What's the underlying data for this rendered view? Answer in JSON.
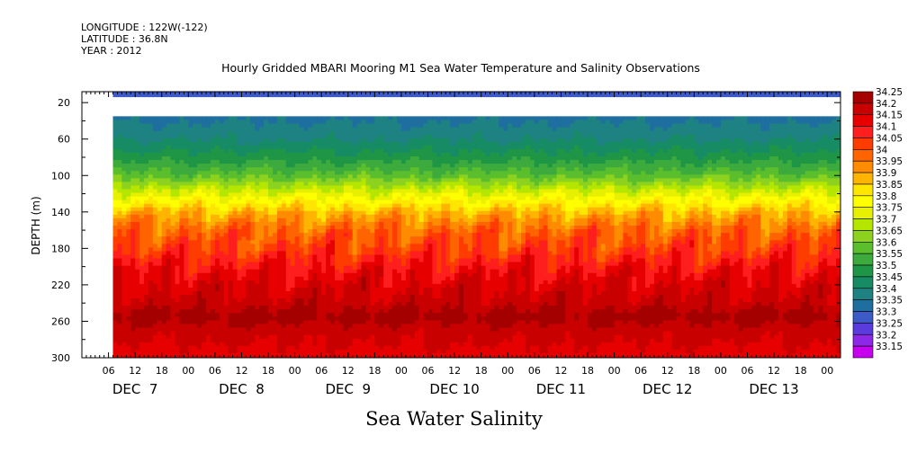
{
  "header": {
    "longitude_label": "LONGITUDE : 122W(-122)",
    "latitude_label": "LATITUDE : 36.8N",
    "year_label": "YEAR : 2012"
  },
  "chart_data": {
    "type": "heatmap",
    "title": "Hourly Gridded MBARI Mooring M1 Sea Water Temperature and Salinity Observations",
    "bottom_title": "Sea Water Salinity",
    "ylabel": "DEPTH (m)",
    "xlabel": "",
    "ylim": [
      300,
      8
    ],
    "y_reversed": true,
    "y_ticks": [
      20,
      60,
      100,
      140,
      180,
      220,
      260,
      300
    ],
    "x_hour_ticks": [
      {
        "hour": 6,
        "label": "06"
      },
      {
        "hour": 12,
        "label": "12"
      },
      {
        "hour": 18,
        "label": "18"
      },
      {
        "hour": 24,
        "label": "00"
      },
      {
        "hour": 30,
        "label": "06"
      },
      {
        "hour": 36,
        "label": "12"
      },
      {
        "hour": 42,
        "label": "18"
      },
      {
        "hour": 48,
        "label": "00"
      },
      {
        "hour": 54,
        "label": "06"
      },
      {
        "hour": 60,
        "label": "12"
      },
      {
        "hour": 66,
        "label": "18"
      },
      {
        "hour": 72,
        "label": "00"
      },
      {
        "hour": 78,
        "label": "06"
      },
      {
        "hour": 84,
        "label": "12"
      },
      {
        "hour": 90,
        "label": "18"
      },
      {
        "hour": 96,
        "label": "00"
      },
      {
        "hour": 102,
        "label": "06"
      },
      {
        "hour": 108,
        "label": "12"
      },
      {
        "hour": 114,
        "label": "18"
      },
      {
        "hour": 120,
        "label": "00"
      },
      {
        "hour": 126,
        "label": "06"
      },
      {
        "hour": 132,
        "label": "12"
      },
      {
        "hour": 138,
        "label": "18"
      },
      {
        "hour": 144,
        "label": "00"
      },
      {
        "hour": 150,
        "label": "06"
      },
      {
        "hour": 156,
        "label": "12"
      },
      {
        "hour": 162,
        "label": "18"
      },
      {
        "hour": 168,
        "label": "00"
      }
    ],
    "x_day_labels": [
      {
        "hour": 12,
        "label": "DEC  7"
      },
      {
        "hour": 36,
        "label": "DEC  8"
      },
      {
        "hour": 60,
        "label": "DEC  9"
      },
      {
        "hour": 84,
        "label": "DEC 10"
      },
      {
        "hour": 108,
        "label": "DEC 11"
      },
      {
        "hour": 132,
        "label": "DEC 12"
      },
      {
        "hour": 156,
        "label": "DEC 13"
      }
    ],
    "xlim_hours": [
      0,
      171
    ],
    "data_start_hour": 7,
    "colorbar": {
      "levels": [
        "34.25",
        "34.2",
        "34.15",
        "34.1",
        "34.05",
        "34",
        "33.95",
        "33.9",
        "33.85",
        "33.8",
        "33.75",
        "33.7",
        "33.65",
        "33.6",
        "33.55",
        "33.5",
        "33.45",
        "33.4",
        "33.35",
        "33.3",
        "33.25",
        "33.2",
        "33.15"
      ],
      "colors": [
        "#a50000",
        "#c80000",
        "#e60000",
        "#ff1e1e",
        "#ff3c00",
        "#ff6400",
        "#ff8c00",
        "#ffb400",
        "#ffe600",
        "#ffff00",
        "#e6f000",
        "#b4e600",
        "#8cd21e",
        "#5abe2d",
        "#3caa3c",
        "#1e9646",
        "#178c64",
        "#1e8282",
        "#1e6ea0",
        "#3c5ac8",
        "#5a3cdc",
        "#8c28e6",
        "#c800f0"
      ]
    },
    "grid": false,
    "legend_placement": "right colorbar",
    "salinity_profile": [
      {
        "depth": 10,
        "value": 33.3
      },
      {
        "depth": 40,
        "value": 33.37
      },
      {
        "depth": 60,
        "value": 33.42
      },
      {
        "depth": 80,
        "value": 33.5
      },
      {
        "depth": 100,
        "value": 33.6
      },
      {
        "depth": 120,
        "value": 33.75
      },
      {
        "depth": 140,
        "value": 33.9
      },
      {
        "depth": 160,
        "value": 34.0
      },
      {
        "depth": 180,
        "value": 34.05
      },
      {
        "depth": 200,
        "value": 34.12
      },
      {
        "depth": 220,
        "value": 34.17
      },
      {
        "depth": 240,
        "value": 34.2
      },
      {
        "depth": 255,
        "value": 34.25
      },
      {
        "depth": 270,
        "value": 34.2
      },
      {
        "depth": 300,
        "value": 34.15
      }
    ],
    "data_gap_depths": [
      14,
      35
    ]
  }
}
